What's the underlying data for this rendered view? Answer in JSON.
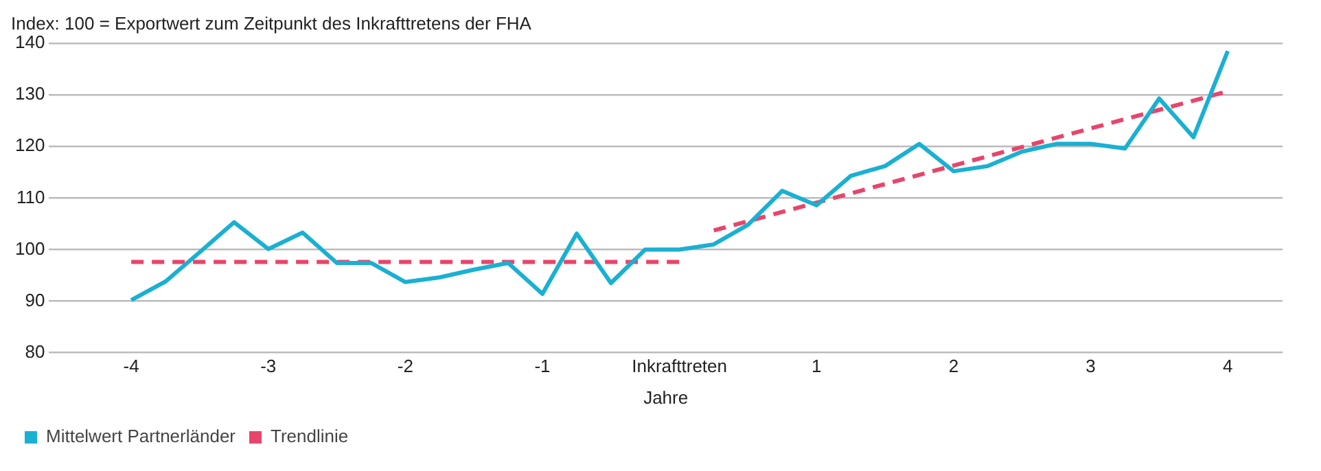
{
  "chart_data": {
    "type": "line",
    "ylabel": "Index: 100 = Exportwert zum Zeitpunkt des Inkrafttretens der FHA",
    "xlabel": "Jahre",
    "x": [
      -4,
      -3.75,
      -3.5,
      -3.25,
      -3,
      -2.75,
      -2.5,
      -2.25,
      -2,
      -1.75,
      -1.5,
      -1.25,
      -1,
      -0.75,
      -0.5,
      -0.25,
      0,
      0.25,
      0.5,
      0.75,
      1,
      1.25,
      1.5,
      1.75,
      2,
      2.25,
      2.5,
      2.75,
      3,
      3.25,
      3.5,
      3.75,
      4
    ],
    "series": [
      {
        "name": "Mittelwert Partnerländer",
        "color": "#1ab0d2",
        "values": [
          90.2,
          93.8,
          99.5,
          105.3,
          100.1,
          103.3,
          97.4,
          97.4,
          93.7,
          94.6,
          96.1,
          97.4,
          91.4,
          103.1,
          93.5,
          100,
          100,
          101,
          104.8,
          111.4,
          108.6,
          114.3,
          116.2,
          120.5,
          115.2,
          116.2,
          119,
          120.5,
          120.5,
          119.6,
          129.3,
          121.8,
          138.5
        ]
      },
      {
        "name": "Trendlinie",
        "type": "line",
        "color": "#e8456b",
        "line_style": "dashed",
        "x": [
          -4,
          0
        ],
        "values": [
          97.6,
          97.6
        ]
      },
      {
        "type": "line",
        "color": "#e8456b",
        "line_style": "dashed",
        "x": [
          0.25,
          4
        ],
        "values": [
          103.7,
          130.7
        ]
      }
    ],
    "xlim": [
      -4.6,
      4.4
    ],
    "xticks": [
      -4,
      -3,
      -2,
      -1,
      {
        "value": 0,
        "label": "Inkrafttreten"
      },
      1,
      2,
      3,
      4
    ],
    "ylim": [
      80,
      140
    ],
    "yticks": [
      80,
      90,
      100,
      110,
      120,
      130,
      140
    ],
    "grid": "y",
    "legend": "bottom left",
    "marker": "none",
    "line_style": "solid"
  }
}
